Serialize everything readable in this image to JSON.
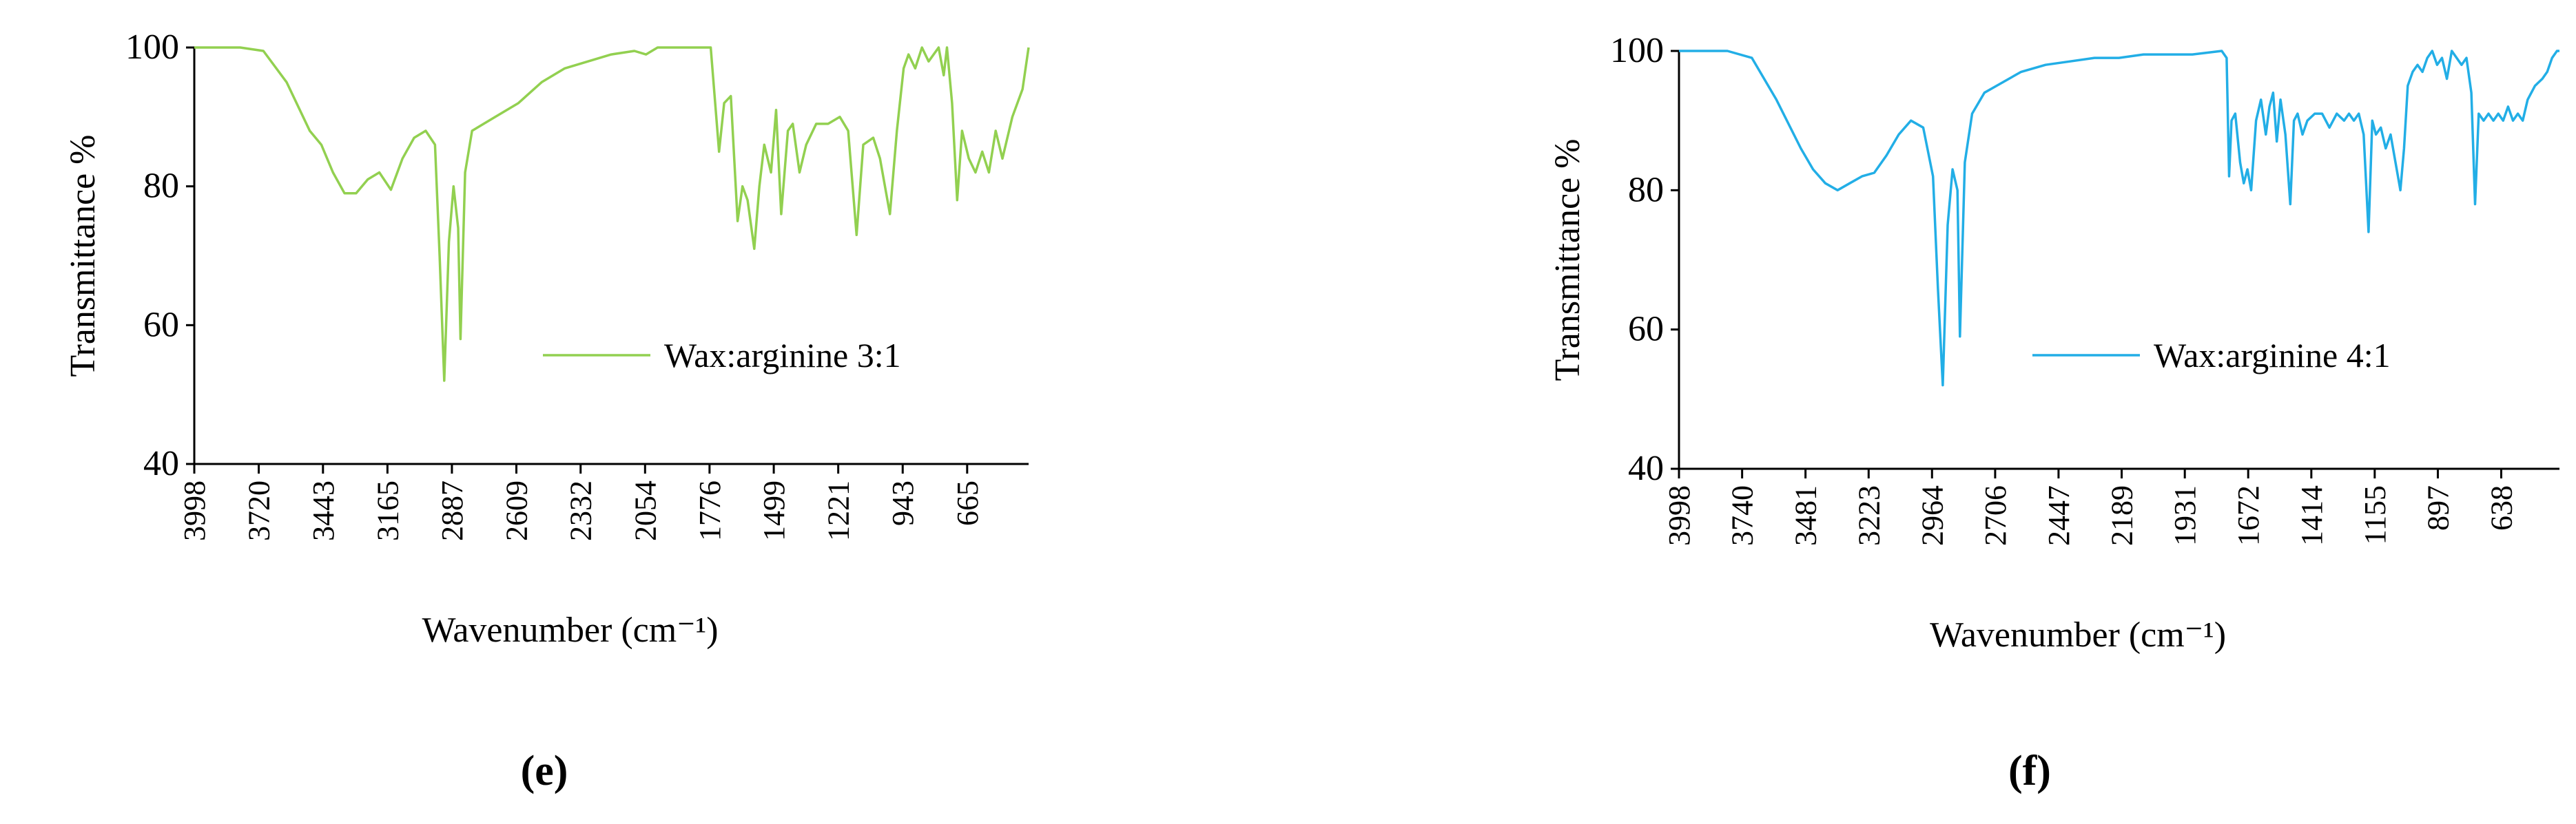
{
  "chart_data": [
    {
      "type": "line",
      "label": "(e)",
      "x_label": "Wavenumber (cm⁻¹)",
      "y_label": "Transmittance %",
      "xlim": [
        3998,
        400
      ],
      "xticks": [
        3998,
        3720,
        3443,
        3165,
        2887,
        2609,
        2332,
        2054,
        1776,
        1499,
        1221,
        943,
        665
      ],
      "ylim": [
        40,
        100
      ],
      "yticks": [
        40,
        60,
        80,
        100
      ],
      "grid": false,
      "legend": "center-right",
      "x": [
        3998,
        3800,
        3700,
        3600,
        3500,
        3450,
        3400,
        3350,
        3300,
        3250,
        3200,
        3150,
        3100,
        3050,
        3000,
        2960,
        2940,
        2920,
        2900,
        2880,
        2860,
        2850,
        2830,
        2800,
        2750,
        2700,
        2600,
        2500,
        2400,
        2300,
        2200,
        2100,
        2050,
        2000,
        1900,
        1771,
        1735,
        1713,
        1684,
        1655,
        1634,
        1612,
        1583,
        1561,
        1540,
        1511,
        1489,
        1467,
        1438,
        1417,
        1388,
        1359,
        1316,
        1265,
        1214,
        1178,
        1142,
        1113,
        1070,
        1041,
        998,
        968,
        939,
        918,
        889,
        860,
        831,
        788,
        766,
        752,
        730,
        708,
        687,
        658,
        629,
        600,
        571,
        542,
        513,
        470,
        426,
        400
      ],
      "series": [
        {
          "name": "Wax:arginine 3:1",
          "color": "#92d050",
          "values": [
            100,
            100,
            99.5,
            95,
            88,
            86,
            82,
            79,
            79,
            81,
            82,
            79.5,
            84,
            87,
            88,
            86,
            70,
            52,
            72,
            80,
            74,
            58,
            82,
            88,
            89,
            90,
            92,
            95,
            97,
            98,
            99,
            99.5,
            99,
            100,
            100,
            100,
            85,
            92,
            93,
            75,
            80,
            78,
            71,
            80,
            86,
            82,
            91,
            76,
            88,
            89,
            82,
            86,
            89,
            89,
            90,
            88,
            73,
            86,
            87,
            84,
            76,
            88,
            97,
            99,
            97,
            100,
            98,
            100,
            96,
            100,
            92,
            78,
            88,
            84,
            82,
            85,
            82,
            88,
            84,
            90,
            94,
            100
          ]
        }
      ]
    },
    {
      "type": "line",
      "label": "(f)",
      "x_label": "Wavenumber (cm⁻¹)",
      "y_label": "Transmittance %",
      "xlim": [
        3998,
        400
      ],
      "xticks": [
        3998,
        3740,
        3481,
        3223,
        2964,
        2706,
        2447,
        2189,
        1931,
        1672,
        1414,
        1155,
        897,
        638
      ],
      "ylim": [
        40,
        100
      ],
      "yticks": [
        40,
        60,
        80,
        100
      ],
      "grid": false,
      "legend": "center-right",
      "x": [
        3998,
        3800,
        3700,
        3600,
        3500,
        3450,
        3400,
        3350,
        3300,
        3250,
        3200,
        3150,
        3100,
        3050,
        3000,
        2960,
        2940,
        2920,
        2900,
        2880,
        2860,
        2850,
        2830,
        2800,
        2750,
        2700,
        2600,
        2500,
        2400,
        2300,
        2200,
        2100,
        2000,
        1900,
        1780,
        1760,
        1750,
        1740,
        1725,
        1705,
        1690,
        1675,
        1660,
        1640,
        1620,
        1600,
        1585,
        1570,
        1555,
        1540,
        1520,
        1500,
        1485,
        1470,
        1450,
        1430,
        1400,
        1370,
        1340,
        1310,
        1280,
        1260,
        1240,
        1220,
        1200,
        1180,
        1165,
        1150,
        1130,
        1110,
        1090,
        1070,
        1050,
        1035,
        1020,
        1000,
        980,
        960,
        940,
        920,
        900,
        880,
        860,
        840,
        820,
        800,
        780,
        760,
        745,
        730,
        710,
        690,
        670,
        650,
        630,
        610,
        590,
        570,
        550,
        530,
        500,
        470,
        450,
        430,
        410,
        400
      ],
      "series": [
        {
          "name": "Wax:arginine 4:1",
          "color": "#22aee6",
          "values": [
            100,
            100,
            99,
            93,
            86,
            83,
            81,
            80,
            81,
            82,
            82.5,
            85,
            88,
            90,
            89,
            82,
            66,
            52,
            75,
            83,
            80,
            59,
            84,
            91,
            94,
            95,
            97,
            98,
            98.5,
            99,
            99,
            99.5,
            99.5,
            99.5,
            100,
            99,
            82,
            90,
            91,
            84,
            81,
            83,
            80,
            90,
            93,
            88,
            92,
            94,
            87,
            93,
            88,
            78,
            90,
            91,
            88,
            90,
            91,
            91,
            89,
            91,
            90,
            91,
            90,
            91,
            88,
            74,
            90,
            88,
            89,
            86,
            88,
            84,
            80,
            86,
            95,
            97,
            98,
            97,
            99,
            100,
            98,
            99,
            96,
            100,
            99,
            98,
            99,
            94,
            78,
            91,
            90,
            91,
            90,
            91,
            90,
            92,
            90,
            91,
            90,
            93,
            95,
            96,
            97,
            99,
            100,
            100
          ]
        }
      ]
    }
  ]
}
